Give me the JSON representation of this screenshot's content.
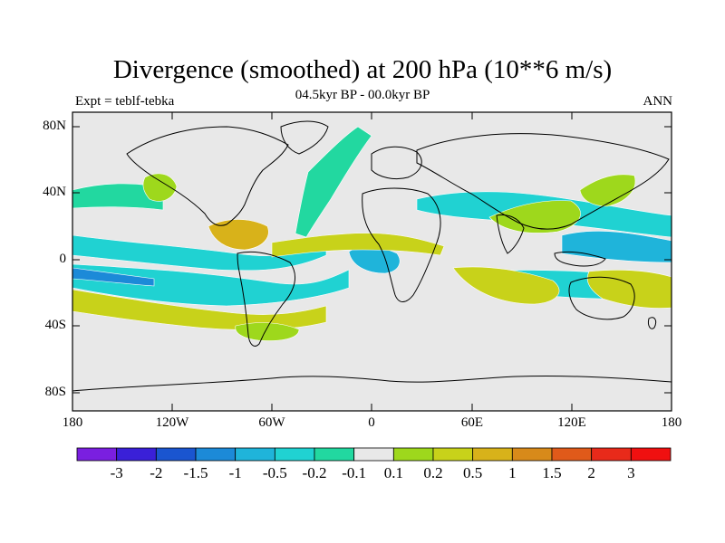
{
  "title": "Divergence (smoothed) at 200 hPa (10**6 m/s)",
  "subtitle_left": "Expt = teblf-tebka",
  "subtitle_center": "04.5kyr BP - 00.0kyr BP",
  "subtitle_right": "ANN",
  "lat_labels": [
    "80N",
    "40N",
    "0",
    "40S",
    "80S"
  ],
  "lon_labels": [
    "180",
    "120W",
    "60W",
    "0",
    "60E",
    "120E",
    "180"
  ],
  "colorbar": {
    "labels": [
      "-3",
      "-2",
      "-1.5",
      "-1",
      "-0.5",
      "-0.2",
      "-0.1",
      "0.1",
      "0.2",
      "0.5",
      "1",
      "1.5",
      "2",
      "3"
    ],
    "colors": [
      "#7a1fe0",
      "#3a20d8",
      "#1a55d0",
      "#1c8ad8",
      "#1fb4da",
      "#20d2d2",
      "#22d8a0",
      "#e8e8e8",
      "#9ed81c",
      "#c8d21a",
      "#d8b21a",
      "#d88a1a",
      "#e05a1a",
      "#e82a1a",
      "#f01010"
    ]
  },
  "colors": {
    "land_background": "#e8e8e8",
    "negative_light": "#22d8a0",
    "negative_mid": "#20d2d2",
    "negative_strong": "#1fb4da",
    "negative_deep": "#1c8ad8",
    "positive_light": "#9ed81c",
    "positive_mid": "#c8d21a",
    "positive_strong": "#d8b21a",
    "positive_deep": "#d88a1a"
  }
}
